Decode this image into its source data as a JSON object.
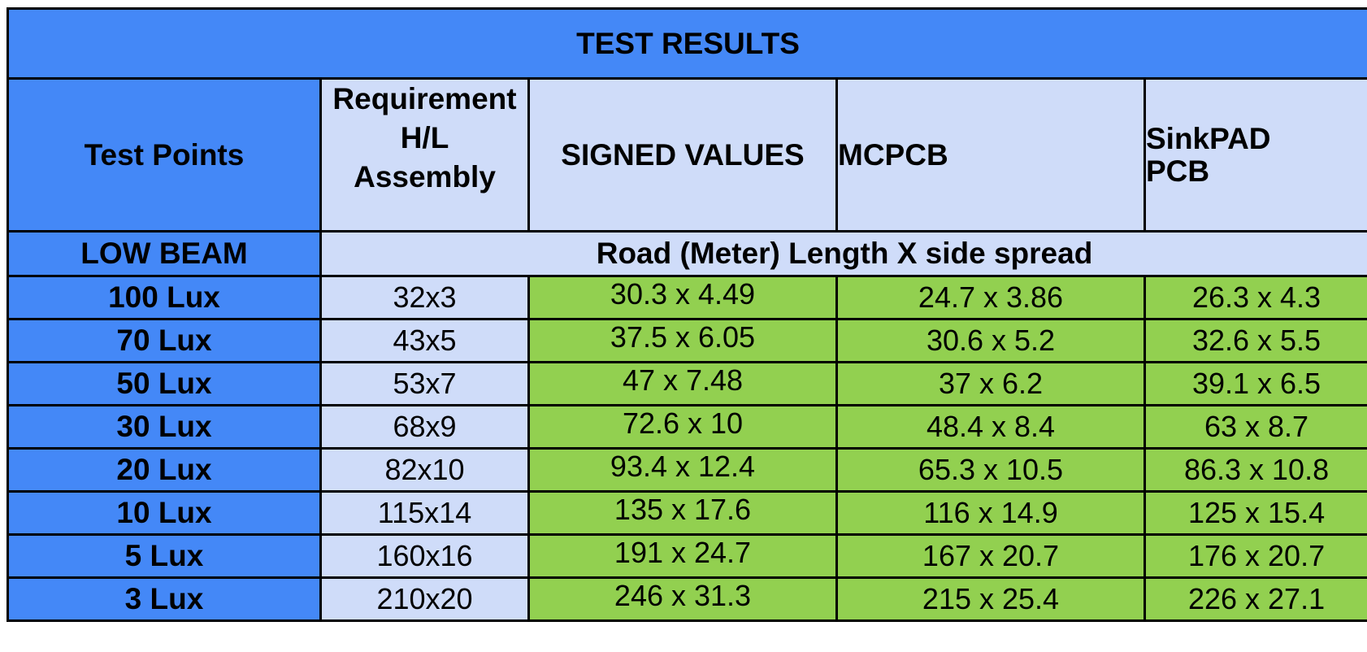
{
  "table": {
    "title": "TEST RESULTS",
    "headers": {
      "test_points": "Test Points",
      "requirement_line1": "Requirement",
      "requirement_line2": "H/L",
      "requirement_line3": "Assembly",
      "signed_values": "SIGNED VALUES",
      "mcpcb": "MCPCB",
      "sinkpad_line1": "SinkPAD",
      "sinkpad_line2": "PCB"
    },
    "subheader": {
      "beam": "LOW BEAM",
      "description": "Road (Meter) Length X side spread"
    },
    "rows": [
      {
        "label": "100 Lux",
        "requirement": "32x3",
        "signed": "30.3 x 4.49",
        "mcpcb": "24.7 x 3.86",
        "sinkpad": "26.3 x 4.3"
      },
      {
        "label": "70 Lux",
        "requirement": "43x5",
        "signed": "37.5 x 6.05",
        "mcpcb": "30.6 x 5.2",
        "sinkpad": "32.6 x 5.5"
      },
      {
        "label": "50 Lux",
        "requirement": "53x7",
        "signed": "47 x 7.48",
        "mcpcb": "37 x 6.2",
        "sinkpad": "39.1 x 6.5"
      },
      {
        "label": "30 Lux",
        "requirement": "68x9",
        "signed": "72.6 x 10",
        "mcpcb": "48.4 x 8.4",
        "sinkpad": "63 x 8.7"
      },
      {
        "label": "20 Lux",
        "requirement": "82x10",
        "signed": "93.4 x 12.4",
        "mcpcb": "65.3 x 10.5",
        "sinkpad": "86.3 x 10.8"
      },
      {
        "label": "10 Lux",
        "requirement": "115x14",
        "signed": "135 x 17.6",
        "mcpcb": "116 x 14.9",
        "sinkpad": "125 x 15.4"
      },
      {
        "label": "5 Lux",
        "requirement": "160x16",
        "signed": "191 x 24.7",
        "mcpcb": "167 x 20.7",
        "sinkpad": "176 x 20.7"
      },
      {
        "label": "3 Lux",
        "requirement": "210x20",
        "signed": "246 x 31.3",
        "mcpcb": "215 x 25.4",
        "sinkpad": "226 x 27.1"
      }
    ],
    "colors": {
      "header_blue": "#4488f7",
      "header_light": "#cfdcf9",
      "value_green": "#92d050"
    }
  }
}
